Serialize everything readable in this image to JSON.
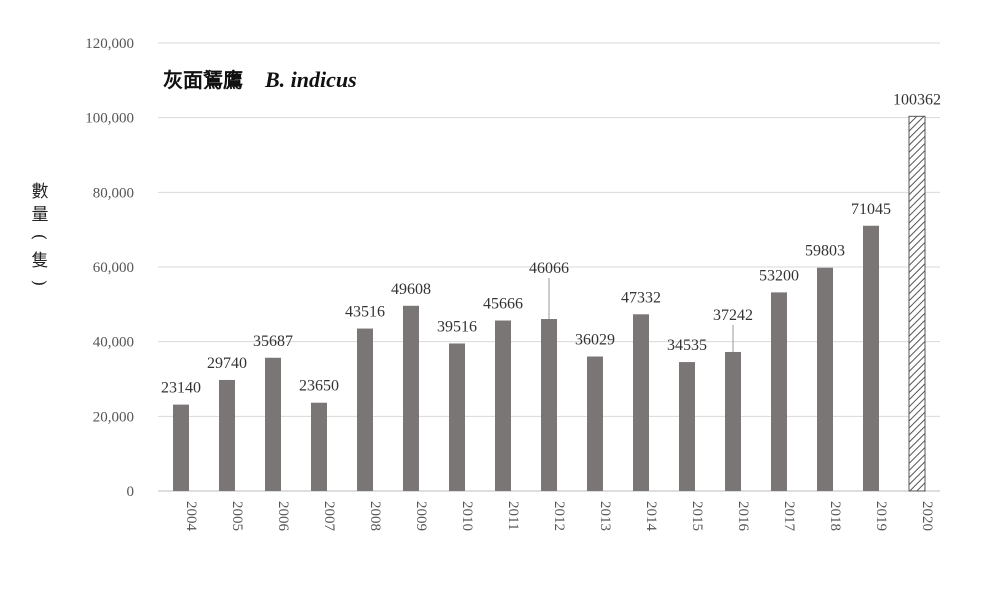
{
  "chart_data": {
    "type": "bar",
    "title_cn": "灰面鵟鷹",
    "title_latin": "B. indicus",
    "ylabel": "數量(隻)",
    "xlabel": "",
    "ylim": [
      0,
      120000
    ],
    "y_ticks": [
      0,
      20000,
      40000,
      60000,
      80000,
      100000,
      120000
    ],
    "y_tick_labels": [
      "0",
      "20,000",
      "40,000",
      "60,000",
      "80,000",
      "100,000",
      "120,000"
    ],
    "grid": true,
    "legend": "none",
    "categories": [
      "2004",
      "2005",
      "2006",
      "2007",
      "2008",
      "2009",
      "2010",
      "2011",
      "2012",
      "2013",
      "2014",
      "2015",
      "2016",
      "2017",
      "2018",
      "2019",
      "2020"
    ],
    "values": [
      23140,
      29740,
      35687,
      23650,
      43516,
      49608,
      39516,
      45666,
      46066,
      36029,
      47332,
      34535,
      37242,
      53200,
      59803,
      71045,
      100362
    ],
    "value_labels": [
      "23140",
      "29740",
      "35687",
      "23650",
      "43516",
      "49608",
      "39516",
      "45666",
      "46066",
      "36029",
      "47332",
      "34535",
      "37242",
      "53200",
      "59803",
      "71045",
      "100362"
    ],
    "bar_color": "#7a7676",
    "hatched_categories": [
      "2020"
    ],
    "hatch_color": "#555555"
  }
}
